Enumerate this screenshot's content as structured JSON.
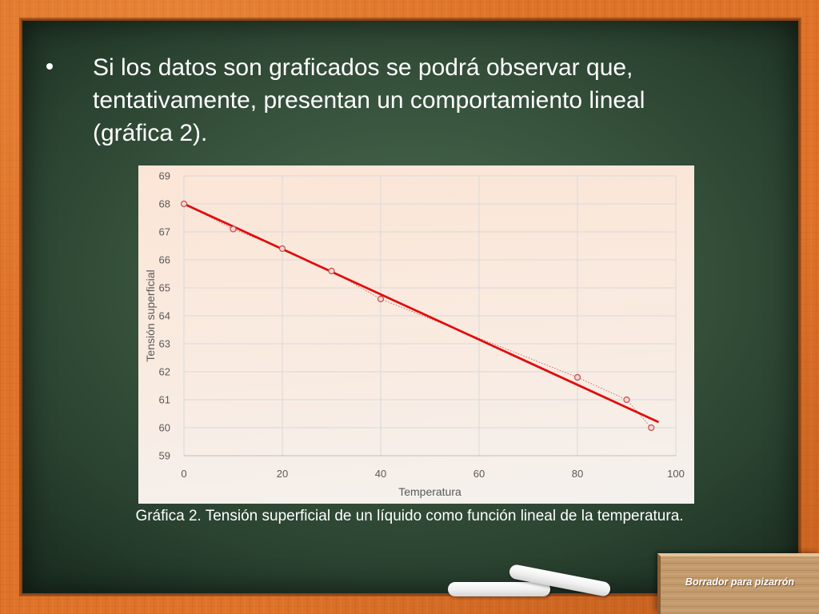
{
  "slide": {
    "bullet_text": "Si los datos son graficados se podrá observar que, tentativamente, presentan un comportamiento lineal (gráfica 2).",
    "caption": "Gráfica 2. Tensión superficial de un líquido como función lineal de la temperatura.",
    "eraser_label": "Borrador para pizarrón"
  },
  "colors": {
    "frame": "#de7329",
    "board": "#3a5640",
    "text": "#ffffff",
    "chart_background": "#fbe5d6",
    "trendline": "#e00b0b",
    "marker": "#c0504d"
  },
  "chart_data": {
    "type": "scatter",
    "xlabel": "Temperatura",
    "ylabel": "Tensión superficial",
    "xlim": [
      0,
      100
    ],
    "ylim": [
      59,
      69
    ],
    "x_ticks": [
      0,
      20,
      40,
      60,
      80,
      100
    ],
    "y_ticks": [
      59,
      60,
      61,
      62,
      63,
      64,
      65,
      66,
      67,
      68,
      69
    ],
    "grid": true,
    "legend": "none",
    "series": [
      {
        "x": [
          0,
          10,
          20,
          30,
          40,
          80,
          90,
          95
        ],
        "y": [
          68.0,
          67.1,
          66.4,
          65.6,
          64.6,
          61.8,
          61.0,
          60.0
        ],
        "marker": "circle",
        "connector": "dotted",
        "color": "#c0504d"
      }
    ],
    "trendline": {
      "type": "linear",
      "x": [
        0,
        96.5
      ],
      "y": [
        68.0,
        60.2
      ],
      "color": "#e00b0b"
    }
  }
}
